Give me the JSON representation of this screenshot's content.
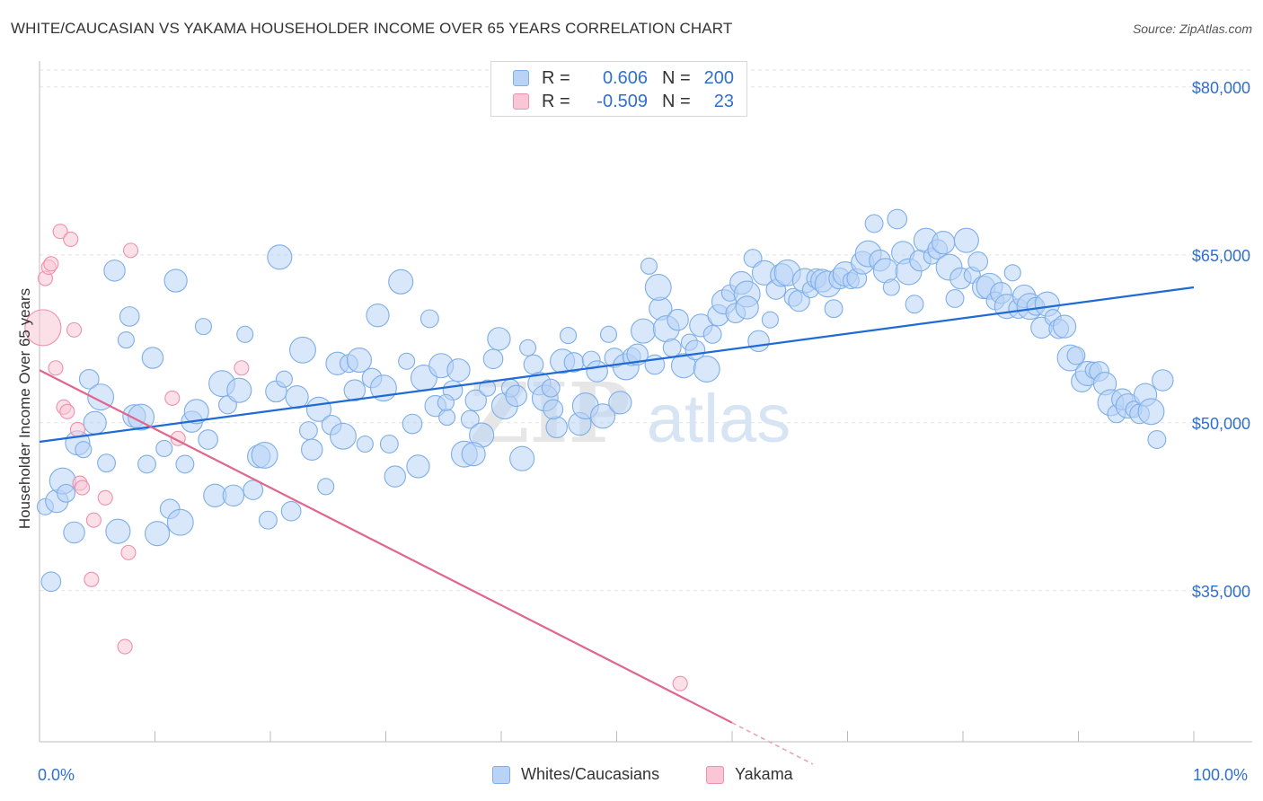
{
  "title": "WHITE/CAUCASIAN VS YAKAMA HOUSEHOLDER INCOME OVER 65 YEARS CORRELATION CHART",
  "source": "Source: ZipAtlas.com",
  "watermark": {
    "zip": "ZIP",
    "atlas": "atlas"
  },
  "legend": {
    "series": [
      {
        "name": "Whites/Caucasians",
        "r_label": "R =",
        "r_value": "0.606",
        "n_label": "N =",
        "n_value": "200",
        "color": "#7eaee8",
        "fill": "#b8d3f5"
      },
      {
        "name": "Yakama",
        "r_label": "R =",
        "r_value": "-0.509",
        "n_label": "N =",
        "n_value": "23",
        "color": "#f08fae",
        "fill": "#f9c6d6"
      }
    ]
  },
  "chart_data": {
    "type": "scatter",
    "title": "WHITE/CAUCASIAN VS YAKAMA HOUSEHOLDER INCOME OVER 65 YEARS CORRELATION CHART",
    "xlabel": "",
    "ylabel": "Householder Income Over 65 years",
    "x_tick_labels": [
      "0.0%",
      "100.0%"
    ],
    "y_tick_labels": [
      "$35,000",
      "$50,000",
      "$65,000",
      "$80,000"
    ],
    "y_ticks": [
      35000,
      50000,
      65000,
      80000
    ],
    "xlim": [
      0,
      100
    ],
    "ylim": [
      21500,
      82000
    ],
    "grid": true,
    "legend_position": "top-center",
    "series": [
      {
        "name": "Whites/Caucasians",
        "color": "#7eaee8",
        "trend": {
          "x": [
            0,
            100
          ],
          "y": [
            48300,
            62100
          ]
        },
        "points": [
          [
            0.5,
            42.5
          ],
          [
            1,
            35.8
          ],
          [
            1.5,
            43
          ],
          [
            2,
            44.8
          ],
          [
            2.3,
            43.7
          ],
          [
            3,
            40.2
          ],
          [
            3.3,
            48.2
          ],
          [
            3.8,
            47.6
          ],
          [
            4.3,
            53.9
          ],
          [
            4.8,
            50
          ],
          [
            5.3,
            52.3
          ],
          [
            5.8,
            46.4
          ],
          [
            6.5,
            63.6
          ],
          [
            6.8,
            40.3
          ],
          [
            7.5,
            57.4
          ],
          [
            7.8,
            59.5
          ],
          [
            8.2,
            50.6
          ],
          [
            8.8,
            50.5
          ],
          [
            9.3,
            46.3
          ],
          [
            9.8,
            55.8
          ],
          [
            10.2,
            40.1
          ],
          [
            10.8,
            47.7
          ],
          [
            11.3,
            42.3
          ],
          [
            11.8,
            62.7
          ],
          [
            12.2,
            41.1
          ],
          [
            12.6,
            46.3
          ],
          [
            13.2,
            50.1
          ],
          [
            13.6,
            51
          ],
          [
            14.2,
            58.6
          ],
          [
            14.6,
            48.5
          ],
          [
            15.2,
            43.5
          ],
          [
            15.8,
            53.5
          ],
          [
            16.3,
            51.6
          ],
          [
            16.8,
            43.5
          ],
          [
            17.3,
            52.9
          ],
          [
            17.8,
            57.9
          ],
          [
            18.5,
            44
          ],
          [
            19,
            47
          ],
          [
            19.5,
            47.1
          ],
          [
            19.8,
            41.3
          ],
          [
            20.5,
            52.8
          ],
          [
            20.8,
            64.8
          ],
          [
            21.2,
            53.9
          ],
          [
            21.8,
            42.1
          ],
          [
            22.3,
            52.3
          ],
          [
            22.8,
            56.5
          ],
          [
            23.3,
            49.3
          ],
          [
            23.6,
            47.6
          ],
          [
            24.2,
            51.2
          ],
          [
            24.8,
            44.3
          ],
          [
            25.3,
            49.8
          ],
          [
            25.8,
            55.3
          ],
          [
            26.3,
            48.8
          ],
          [
            26.8,
            55.3
          ],
          [
            27.3,
            52.9
          ],
          [
            27.7,
            55.6
          ],
          [
            28.2,
            48.1
          ],
          [
            28.8,
            54
          ],
          [
            29.3,
            59.6
          ],
          [
            29.8,
            53.1
          ],
          [
            30.3,
            48.1
          ],
          [
            30.8,
            45.2
          ],
          [
            31.3,
            62.6
          ],
          [
            31.8,
            55.5
          ],
          [
            32.3,
            49.9
          ],
          [
            32.8,
            46.1
          ],
          [
            33.3,
            54
          ],
          [
            33.8,
            59.3
          ],
          [
            34.3,
            51.5
          ],
          [
            34.8,
            55.1
          ],
          [
            35.3,
            50.5
          ],
          [
            35.8,
            52.9
          ],
          [
            36.3,
            54.7
          ],
          [
            36.8,
            47.2
          ],
          [
            37.3,
            50.3
          ],
          [
            37.8,
            52
          ],
          [
            38.3,
            48.9
          ],
          [
            38.8,
            53.1
          ],
          [
            39.3,
            55.7
          ],
          [
            39.8,
            57.5
          ],
          [
            40.3,
            51.5
          ],
          [
            40.8,
            53.1
          ],
          [
            41.3,
            52.4
          ],
          [
            41.8,
            46.8
          ],
          [
            42.3,
            56.7
          ],
          [
            42.8,
            55.2
          ],
          [
            43.3,
            53.5
          ],
          [
            43.8,
            52.2
          ],
          [
            44.3,
            53.1
          ],
          [
            44.8,
            49.6
          ],
          [
            45.3,
            55.5
          ],
          [
            45.8,
            57.8
          ],
          [
            46.3,
            55.4
          ],
          [
            46.8,
            49.9
          ],
          [
            47.3,
            51.5
          ],
          [
            47.8,
            55.6
          ],
          [
            48.3,
            54.6
          ],
          [
            48.8,
            50.6
          ],
          [
            49.3,
            57.9
          ],
          [
            49.8,
            55.8
          ],
          [
            50.3,
            51.8
          ],
          [
            50.8,
            55
          ],
          [
            51.3,
            55.9
          ],
          [
            51.8,
            56.1
          ],
          [
            52.3,
            58.2
          ],
          [
            52.8,
            64
          ],
          [
            53.3,
            55.2
          ],
          [
            53.8,
            60.2
          ],
          [
            54.3,
            58.4
          ],
          [
            54.8,
            56.7
          ],
          [
            55.3,
            59.2
          ],
          [
            55.8,
            55.1
          ],
          [
            56.3,
            57.2
          ],
          [
            56.8,
            56.5
          ],
          [
            57.3,
            58.7
          ],
          [
            57.8,
            54.8
          ],
          [
            58.3,
            57.9
          ],
          [
            58.8,
            59.6
          ],
          [
            59.3,
            60.8
          ],
          [
            59.8,
            61.6
          ],
          [
            60.3,
            59.8
          ],
          [
            60.8,
            62.5
          ],
          [
            61.3,
            61.5
          ],
          [
            61.8,
            64.7
          ],
          [
            62.3,
            57.3
          ],
          [
            62.8,
            63.4
          ],
          [
            63.3,
            59.2
          ],
          [
            63.8,
            61.9
          ],
          [
            64.3,
            63.2
          ],
          [
            64.8,
            63.4
          ],
          [
            65.3,
            61.2
          ],
          [
            65.8,
            60.9
          ],
          [
            66.3,
            62.7
          ],
          [
            66.8,
            61.9
          ],
          [
            67.3,
            62.9
          ],
          [
            67.8,
            62.7
          ],
          [
            68.3,
            62.4
          ],
          [
            68.8,
            60.2
          ],
          [
            69.3,
            62.9
          ],
          [
            69.8,
            63.3
          ],
          [
            70.3,
            62.7
          ],
          [
            70.8,
            62.9
          ],
          [
            71.3,
            64.3
          ],
          [
            71.8,
            65.1
          ],
          [
            72.3,
            67.8
          ],
          [
            72.8,
            64.5
          ],
          [
            73.3,
            63.6
          ],
          [
            73.8,
            62.1
          ],
          [
            74.3,
            68.2
          ],
          [
            74.8,
            65.2
          ],
          [
            75.3,
            63.5
          ],
          [
            75.8,
            60.6
          ],
          [
            76.3,
            64.5
          ],
          [
            76.8,
            66.3
          ],
          [
            77.3,
            64.9
          ],
          [
            77.8,
            65.5
          ],
          [
            78.3,
            66.1
          ],
          [
            78.8,
            63.9
          ],
          [
            79.3,
            61.1
          ],
          [
            79.8,
            62.9
          ],
          [
            80.3,
            66.3
          ],
          [
            80.8,
            63.2
          ],
          [
            81.3,
            64.4
          ],
          [
            81.8,
            62.1
          ],
          [
            82.3,
            62.2
          ],
          [
            82.8,
            60.9
          ],
          [
            83.3,
            61.6
          ],
          [
            83.8,
            60.4
          ],
          [
            84.3,
            63.4
          ],
          [
            84.8,
            60.2
          ],
          [
            85.3,
            61.3
          ],
          [
            85.8,
            60.4
          ],
          [
            86.3,
            60.4
          ],
          [
            86.8,
            58.5
          ],
          [
            87.3,
            60.6
          ],
          [
            87.8,
            59.4
          ],
          [
            88.3,
            58.4
          ],
          [
            88.8,
            58.6
          ],
          [
            89.3,
            55.8
          ],
          [
            89.8,
            56
          ],
          [
            90.3,
            53.7
          ],
          [
            90.8,
            54.4
          ],
          [
            91.3,
            54.7
          ],
          [
            91.8,
            54.6
          ],
          [
            92.3,
            53.5
          ],
          [
            92.8,
            51.8
          ],
          [
            93.3,
            50.8
          ],
          [
            93.8,
            52.1
          ],
          [
            94.3,
            51.5
          ],
          [
            94.8,
            51.2
          ],
          [
            95.3,
            50.8
          ],
          [
            95.8,
            52.5
          ],
          [
            96.3,
            51
          ],
          [
            96.8,
            48.5
          ],
          [
            97.3,
            53.8
          ],
          [
            37.6,
            47.2
          ],
          [
            35.2,
            51.8
          ],
          [
            44.5,
            51.2
          ],
          [
            61.3,
            60.3
          ],
          [
            53.6,
            62.1
          ]
        ]
      },
      {
        "name": "Yakama",
        "color": "#f08fae",
        "trend": {
          "x": [
            0,
            60
          ],
          "y": [
            54700,
            23200
          ]
        },
        "trend_dashed": {
          "x": [
            60,
            67
          ],
          "y": [
            23200,
            19500
          ]
        },
        "points": [
          [
            0.3,
            58.5
          ],
          [
            0.5,
            62.9
          ],
          [
            0.8,
            63.9
          ],
          [
            1,
            64.2
          ],
          [
            1.4,
            54.9
          ],
          [
            1.8,
            67.1
          ],
          [
            2.1,
            51.4
          ],
          [
            2.4,
            51
          ],
          [
            2.7,
            66.4
          ],
          [
            3,
            58.3
          ],
          [
            3.3,
            49.4
          ],
          [
            3.5,
            44.6
          ],
          [
            3.7,
            44.2
          ],
          [
            4.5,
            36
          ],
          [
            4.7,
            41.3
          ],
          [
            5.7,
            43.3
          ],
          [
            7.4,
            30
          ],
          [
            7.7,
            38.4
          ],
          [
            7.9,
            65.4
          ],
          [
            11.5,
            52.2
          ],
          [
            12,
            48.6
          ],
          [
            17.5,
            54.9
          ],
          [
            55.5,
            26.7
          ]
        ]
      }
    ]
  }
}
